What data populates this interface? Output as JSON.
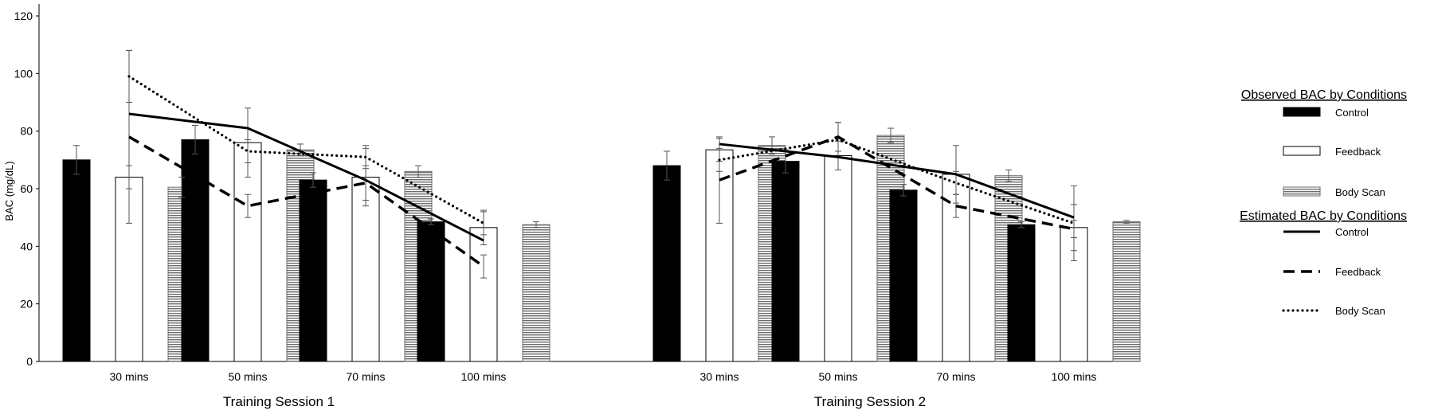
{
  "chart_data": {
    "type": "bar",
    "ylabel": "BAC (mg/dL)",
    "xlabel": "",
    "ylim": [
      0,
      120
    ],
    "yticks": [
      0,
      20,
      40,
      60,
      80,
      100,
      120
    ],
    "grid": false,
    "legend_position": "right",
    "legend": {
      "observed_title": "Observed BAC by Conditions",
      "estimated_title": "Estimated BAC by Conditions",
      "items": [
        "Control",
        "Feedback",
        "Body Scan"
      ]
    },
    "sessions": [
      {
        "name": "Training Session 1",
        "categories": [
          "30 mins",
          "50 mins",
          "70 mins",
          "100 mins"
        ],
        "observed": [
          {
            "name": "Control",
            "values": [
              70,
              77,
              63,
              48.5
            ],
            "errors": [
              5,
              5,
              2.5,
              1
            ]
          },
          {
            "name": "Feedback",
            "values": [
              64,
              76,
              64,
              46.5
            ],
            "errors": [
              4,
              12,
              10,
              6
            ]
          },
          {
            "name": "Body Scan",
            "values": [
              60.5,
              73.5,
              66,
              47.5
            ],
            "errors": [
              3.5,
              2,
              2,
              1
            ]
          }
        ],
        "estimated": [
          {
            "name": "Control",
            "values": [
              86,
              81,
              63,
              42
            ]
          },
          {
            "name": "Feedback",
            "values": [
              78,
              54,
              62,
              33
            ]
          },
          {
            "name": "Body Scan",
            "values": [
              99,
              73,
              71,
              48
            ]
          }
        ],
        "estimated_errors": [
          {
            "name": "Feedback",
            "values": [
              30,
              4,
              6,
              4
            ]
          },
          {
            "name": "Body Scan",
            "values": [
              9,
              4,
              4,
              4
            ]
          }
        ]
      },
      {
        "name": "Training Session 2",
        "categories": [
          "30 mins",
          "50 mins",
          "70 mins",
          "100 mins"
        ],
        "observed": [
          {
            "name": "Control",
            "values": [
              68,
              69.5,
              59.5,
              47.5
            ],
            "errors": [
              5,
              4,
              2,
              1
            ]
          },
          {
            "name": "Feedback",
            "values": [
              73.5,
              71.5,
              65,
              46.5
            ],
            "errors": [
              4,
              5,
              10,
              8
            ]
          },
          {
            "name": "Body Scan",
            "values": [
              75,
              78.5,
              64.5,
              48.5
            ],
            "errors": [
              3,
              2.5,
              2,
              0.5
            ]
          }
        ],
        "estimated": [
          {
            "name": "Control",
            "values": [
              75.5,
              71,
              65,
              50
            ]
          },
          {
            "name": "Feedback",
            "values": [
              63,
              78,
              54,
              46
            ]
          },
          {
            "name": "Body Scan",
            "values": [
              70,
              77,
              62,
              48
            ]
          }
        ],
        "estimated_errors": [
          {
            "name": "Feedback",
            "values": [
              15,
              5,
              4,
              3
            ]
          },
          {
            "name": "Body Scan",
            "values": [
              4,
              6,
              4,
              13
            ]
          }
        ]
      }
    ]
  }
}
